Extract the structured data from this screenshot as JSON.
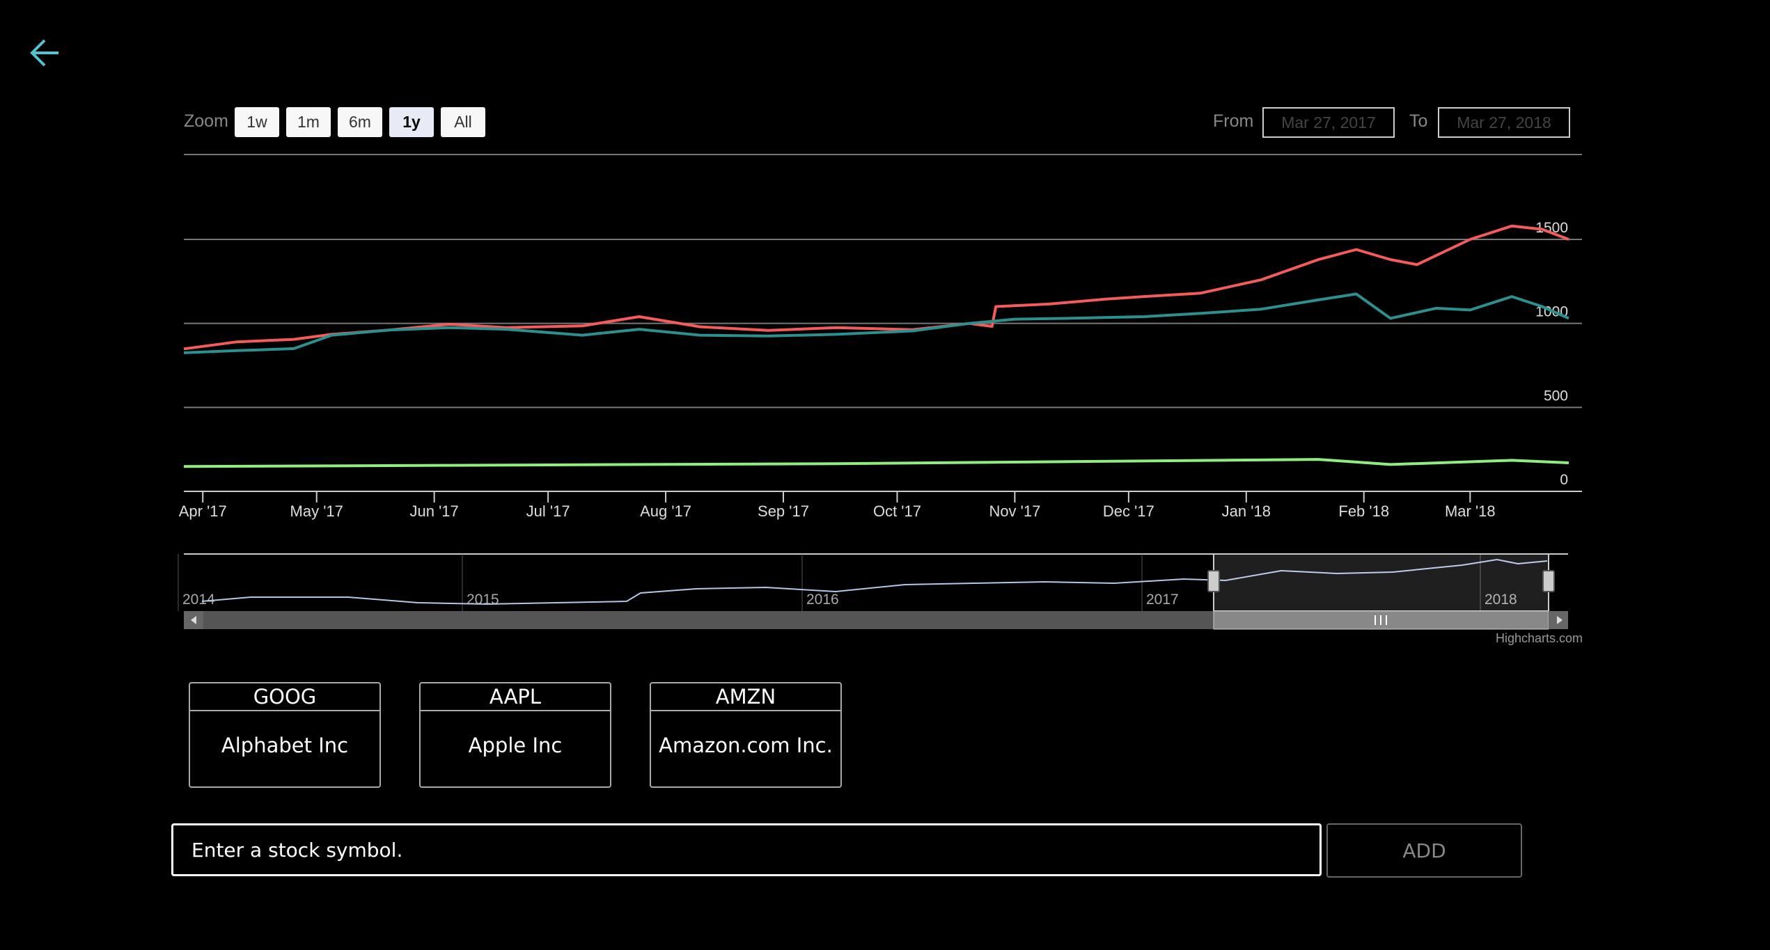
{
  "nav": {
    "back_icon": "arrow-left-icon",
    "back_color": "#55c1d1"
  },
  "toolbar": {
    "zoom_label": "Zoom",
    "zoom_buttons": [
      "1w",
      "1m",
      "6m",
      "1y",
      "All"
    ],
    "zoom_selected": "1y",
    "from_label": "From",
    "from_value": "Mar 27, 2017",
    "to_label": "To",
    "to_value": "Mar 27, 2018"
  },
  "chart_data": {
    "type": "line",
    "x_ticks": [
      "Apr '17",
      "May '17",
      "Jun '17",
      "Jul '17",
      "Aug '17",
      "Sep '17",
      "Oct '17",
      "Nov '17",
      "Dec '17",
      "Jan '18",
      "Feb '18",
      "Mar '18"
    ],
    "y_ticks": [
      0,
      500,
      1000,
      1500
    ],
    "ylim": [
      0,
      2000
    ],
    "xlim": [
      "2017-03-27",
      "2018-03-27"
    ],
    "series": [
      {
        "color": "#f45b5b",
        "points": [
          [
            "2017-03-27",
            848
          ],
          [
            "2017-04-10",
            890
          ],
          [
            "2017-04-25",
            905
          ],
          [
            "2017-05-05",
            935
          ],
          [
            "2017-05-20",
            960
          ],
          [
            "2017-06-05",
            995
          ],
          [
            "2017-06-20",
            975
          ],
          [
            "2017-07-10",
            985
          ],
          [
            "2017-07-25",
            1040
          ],
          [
            "2017-08-10",
            980
          ],
          [
            "2017-08-28",
            958
          ],
          [
            "2017-09-15",
            975
          ],
          [
            "2017-10-05",
            962
          ],
          [
            "2017-10-20",
            1000
          ],
          [
            "2017-10-26",
            982
          ],
          [
            "2017-10-27",
            1100
          ],
          [
            "2017-11-10",
            1115
          ],
          [
            "2017-11-25",
            1145
          ],
          [
            "2017-12-05",
            1160
          ],
          [
            "2017-12-20",
            1180
          ],
          [
            "2018-01-05",
            1260
          ],
          [
            "2018-01-20",
            1380
          ],
          [
            "2018-01-30",
            1440
          ],
          [
            "2018-02-08",
            1380
          ],
          [
            "2018-02-15",
            1350
          ],
          [
            "2018-03-01",
            1500
          ],
          [
            "2018-03-12",
            1580
          ],
          [
            "2018-03-20",
            1560
          ],
          [
            "2018-03-27",
            1500
          ]
        ]
      },
      {
        "color": "#2b908f",
        "points": [
          [
            "2017-03-27",
            825
          ],
          [
            "2017-04-10",
            838
          ],
          [
            "2017-04-25",
            850
          ],
          [
            "2017-05-05",
            930
          ],
          [
            "2017-05-20",
            960
          ],
          [
            "2017-06-05",
            975
          ],
          [
            "2017-06-20",
            965
          ],
          [
            "2017-07-10",
            930
          ],
          [
            "2017-07-25",
            965
          ],
          [
            "2017-08-10",
            930
          ],
          [
            "2017-08-28",
            925
          ],
          [
            "2017-09-15",
            935
          ],
          [
            "2017-10-05",
            955
          ],
          [
            "2017-10-20",
            1000
          ],
          [
            "2017-11-01",
            1025
          ],
          [
            "2017-11-15",
            1030
          ],
          [
            "2017-12-05",
            1040
          ],
          [
            "2017-12-20",
            1060
          ],
          [
            "2018-01-05",
            1085
          ],
          [
            "2018-01-20",
            1140
          ],
          [
            "2018-01-30",
            1175
          ],
          [
            "2018-02-08",
            1030
          ],
          [
            "2018-02-20",
            1090
          ],
          [
            "2018-03-01",
            1080
          ],
          [
            "2018-03-12",
            1160
          ],
          [
            "2018-03-20",
            1100
          ],
          [
            "2018-03-27",
            1030
          ]
        ]
      },
      {
        "color": "#90ee7e",
        "points": [
          [
            "2017-03-27",
            148
          ],
          [
            "2017-06-05",
            155
          ],
          [
            "2017-09-15",
            165
          ],
          [
            "2017-11-20",
            178
          ],
          [
            "2018-01-20",
            190
          ],
          [
            "2018-02-08",
            160
          ],
          [
            "2018-03-12",
            185
          ],
          [
            "2018-03-27",
            170
          ]
        ]
      }
    ]
  },
  "navigator": {
    "year_labels": [
      "2014",
      "2015",
      "2016",
      "2017",
      "2018"
    ],
    "line_color": "#b3c7e6",
    "scrollbar_grip_icon": "grip-icon",
    "scroll_left_icon": "triangle-left-icon",
    "scroll_right_icon": "triangle-right-icon"
  },
  "credits": "Highcharts.com",
  "stocks": [
    {
      "symbol": "GOOG",
      "name": "Alphabet Inc"
    },
    {
      "symbol": "AAPL",
      "name": "Apple Inc"
    },
    {
      "symbol": "AMZN",
      "name": "Amazon.com Inc."
    }
  ],
  "add_form": {
    "placeholder": "Enter a stock symbol.",
    "button_label": "ADD"
  }
}
